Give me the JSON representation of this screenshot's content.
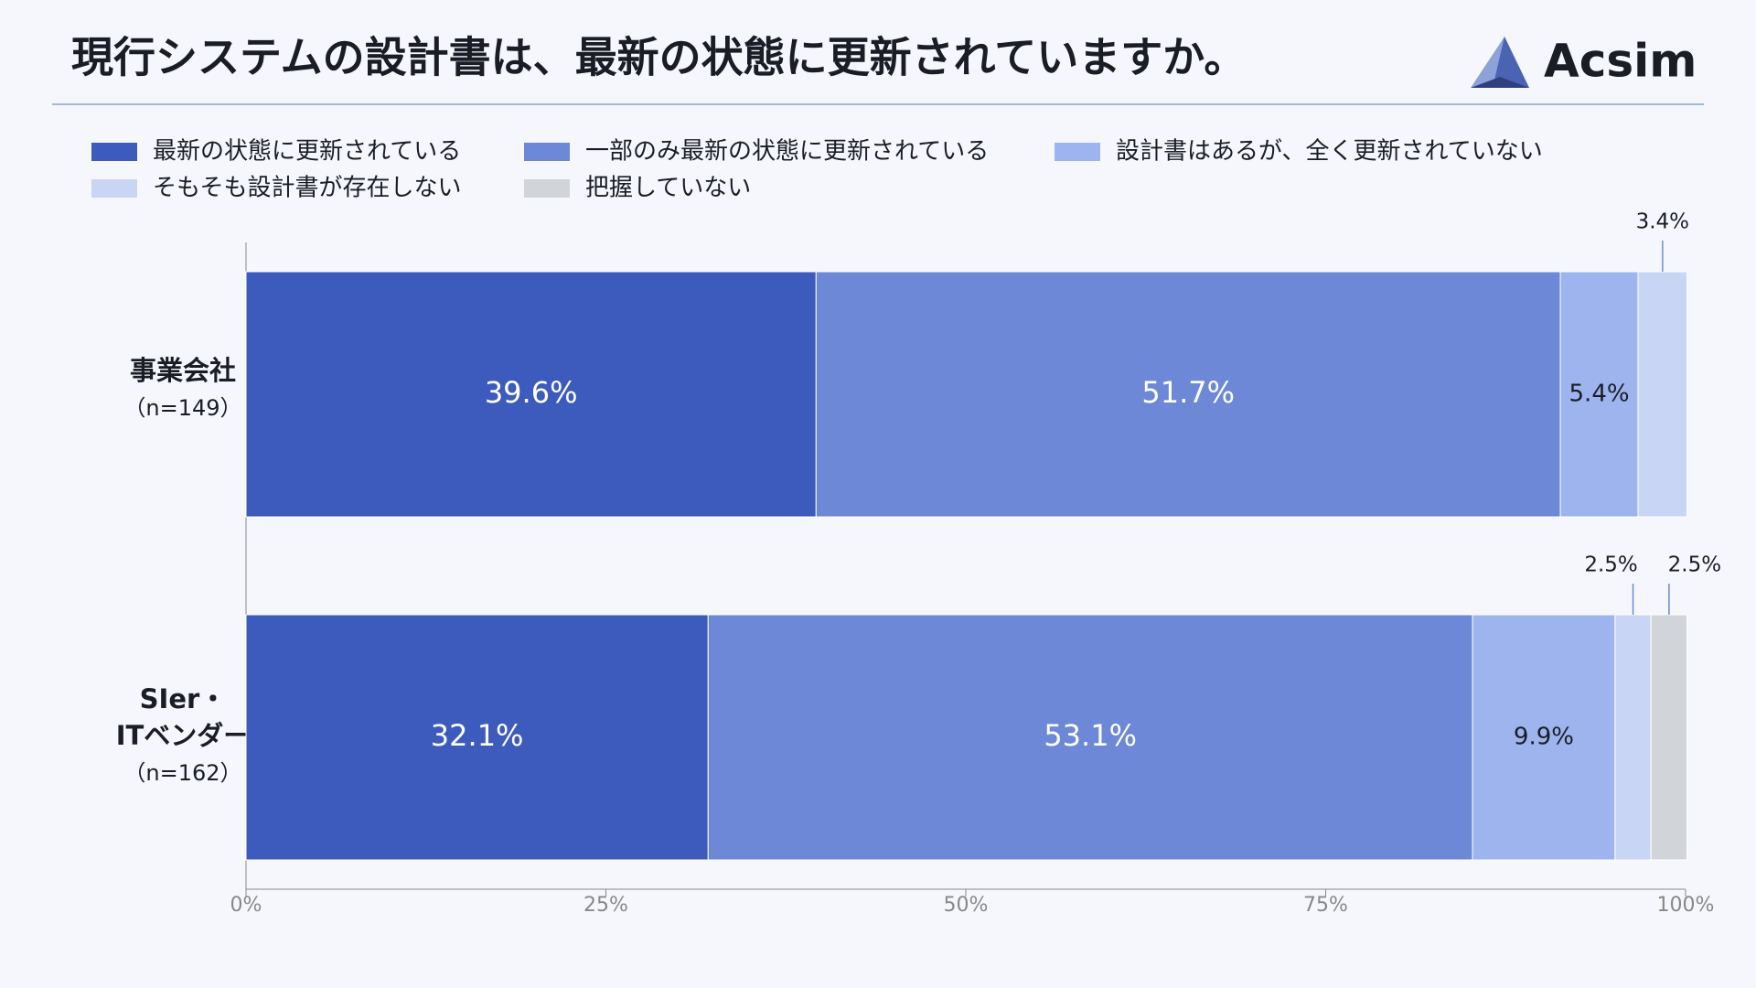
{
  "chart_data": {
    "type": "stacked-bar-horizontal",
    "title": "現行システムの設計書は、最新の状態に更新されていますか。",
    "logo": "Acsim",
    "categories": [
      [
        "事業会社",
        "（n=149）"
      ],
      [
        "SIer・",
        "ITベンダー",
        "（n=162）"
      ]
    ],
    "series": [
      {
        "name": "最新の状態に更新されている",
        "color": "#3d5bbd",
        "values": [
          39.6,
          32.1
        ],
        "value_labels": [
          "39.6%",
          "32.1%"
        ]
      },
      {
        "name": "一部のみ最新の状態に更新されている",
        "color": "#6c88d6",
        "values": [
          51.7,
          53.1
        ],
        "value_labels": [
          "51.7%",
          "53.1%"
        ]
      },
      {
        "name": "設計書はあるが、全く更新されていない",
        "color": "#9db4ee",
        "values": [
          5.4,
          9.9
        ],
        "value_labels": [
          "5.4%",
          "9.9%"
        ]
      },
      {
        "name": "そもそも設計書が存在しない",
        "color": "#c9d5f4",
        "values": [
          3.4,
          2.5
        ],
        "value_labels": [
          "3.4%",
          "2.5%"
        ]
      },
      {
        "name": "把握していない",
        "color": "#d1d5d9",
        "values": [
          0,
          2.5
        ],
        "value_labels": [
          null,
          "2.5%"
        ]
      }
    ],
    "xlim": [
      0,
      100
    ],
    "xticks": [
      {
        "value": 0,
        "label": "0%"
      },
      {
        "value": 25,
        "label": "25%"
      },
      {
        "value": 50,
        "label": "50%"
      },
      {
        "value": 75,
        "label": "75%"
      },
      {
        "value": 100,
        "label": "100%"
      }
    ]
  }
}
